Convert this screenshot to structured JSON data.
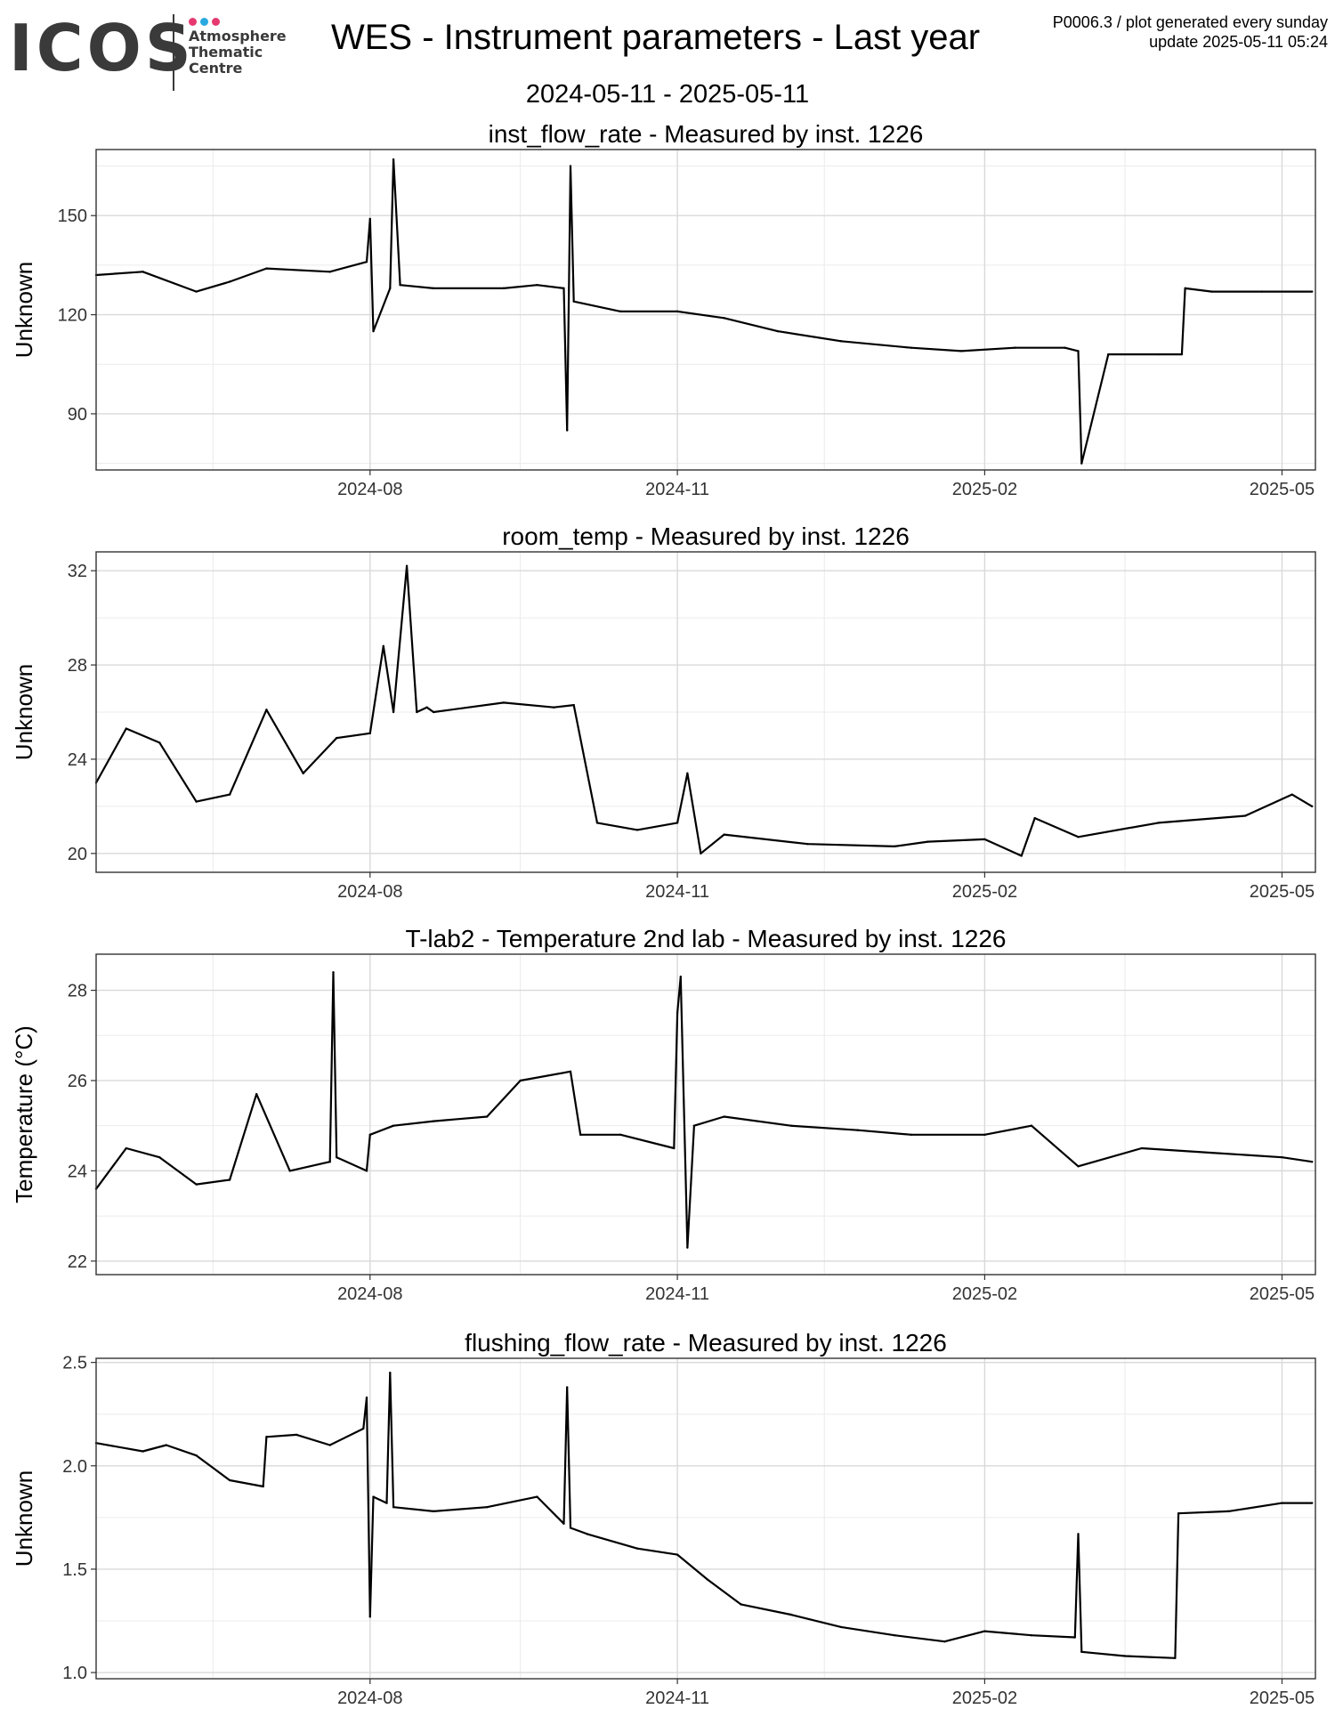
{
  "header": {
    "logo_text": "ICOS",
    "logo_sub": [
      "Atmosphere",
      "Thematic",
      "Centre"
    ],
    "logo_dot_colors": [
      "#e6396f",
      "#2aa8e0",
      "#e6396f"
    ],
    "title": "WES - Instrument parameters - Last year",
    "date_range": "2024-05-11 - 2025-05-11",
    "meta_line1": "P0006.3 / plot generated every sunday",
    "meta_line2": "update  2025-05-11 05:24"
  },
  "chart_data": [
    {
      "type": "line",
      "title": "inst_flow_rate - Measured by inst. 1226",
      "ylabel": "Unknown",
      "xlim": [
        "2024-05-11",
        "2025-05-11"
      ],
      "ylim": [
        73,
        170
      ],
      "yticks": [
        90,
        120,
        150
      ],
      "xticks": [
        {
          "date": "2024-08-01",
          "label": "2024-08"
        },
        {
          "date": "2024-11-01",
          "label": "2024-11"
        },
        {
          "date": "2025-02-01",
          "label": "2025-02"
        },
        {
          "date": "2025-05-01",
          "label": "2025-05"
        }
      ],
      "grid": true,
      "series": [
        {
          "x": [
            "2024-05-11",
            "2024-05-25",
            "2024-06-10",
            "2024-06-20",
            "2024-07-01",
            "2024-07-20",
            "2024-07-31",
            "2024-08-01",
            "2024-08-02",
            "2024-08-07",
            "2024-08-08",
            "2024-08-10",
            "2024-08-20",
            "2024-09-10",
            "2024-09-20",
            "2024-09-28",
            "2024-09-29",
            "2024-09-30",
            "2024-10-01",
            "2024-10-15",
            "2024-11-01",
            "2024-11-15",
            "2024-12-01",
            "2024-12-20",
            "2025-01-10",
            "2025-01-25",
            "2025-02-10",
            "2025-02-25",
            "2025-03-01",
            "2025-03-02",
            "2025-03-10",
            "2025-03-25",
            "2025-04-01",
            "2025-04-02",
            "2025-04-10",
            "2025-04-25",
            "2025-05-10"
          ],
          "y": [
            132,
            133,
            127,
            130,
            134,
            133,
            136,
            149,
            115,
            128,
            167,
            129,
            128,
            128,
            129,
            128,
            85,
            165,
            124,
            121,
            121,
            119,
            115,
            112,
            110,
            109,
            110,
            110,
            109,
            75,
            108,
            108,
            108,
            128,
            127,
            127,
            127
          ]
        }
      ]
    },
    {
      "type": "line",
      "title": "room_temp - Measured by inst. 1226",
      "ylabel": "Unknown",
      "xlim": [
        "2024-05-11",
        "2025-05-11"
      ],
      "ylim": [
        19.2,
        32.8
      ],
      "yticks": [
        20,
        24,
        28,
        32
      ],
      "xticks": [
        {
          "date": "2024-08-01",
          "label": "2024-08"
        },
        {
          "date": "2024-11-01",
          "label": "2024-11"
        },
        {
          "date": "2025-02-01",
          "label": "2025-02"
        },
        {
          "date": "2025-05-01",
          "label": "2025-05"
        }
      ],
      "grid": true,
      "series": [
        {
          "x": [
            "2024-05-11",
            "2024-05-20",
            "2024-05-30",
            "2024-06-10",
            "2024-06-20",
            "2024-07-01",
            "2024-07-12",
            "2024-07-22",
            "2024-08-01",
            "2024-08-05",
            "2024-08-08",
            "2024-08-12",
            "2024-08-15",
            "2024-08-18",
            "2024-08-20",
            "2024-09-10",
            "2024-09-25",
            "2024-10-01",
            "2024-10-08",
            "2024-10-20",
            "2024-11-01",
            "2024-11-04",
            "2024-11-08",
            "2024-11-15",
            "2024-12-10",
            "2025-01-05",
            "2025-01-15",
            "2025-02-01",
            "2025-02-12",
            "2025-02-16",
            "2025-03-01",
            "2025-03-25",
            "2025-04-20",
            "2025-05-04",
            "2025-05-10"
          ],
          "y": [
            23.0,
            25.3,
            24.7,
            22.2,
            22.5,
            26.1,
            23.4,
            24.9,
            25.1,
            28.8,
            26.0,
            32.2,
            26.0,
            26.2,
            26.0,
            26.4,
            26.2,
            26.3,
            21.3,
            21.0,
            21.3,
            23.4,
            20.0,
            20.8,
            20.4,
            20.3,
            20.5,
            20.6,
            19.9,
            21.5,
            20.7,
            21.3,
            21.6,
            22.5,
            22.0
          ]
        }
      ]
    },
    {
      "type": "line",
      "title": "T-lab2 - Temperature 2nd lab - Measured by inst. 1226",
      "ylabel": "Temperature (°C)",
      "xlim": [
        "2024-05-11",
        "2025-05-11"
      ],
      "ylim": [
        21.7,
        28.8
      ],
      "yticks": [
        22,
        24,
        26,
        28
      ],
      "xticks": [
        {
          "date": "2024-08-01",
          "label": "2024-08"
        },
        {
          "date": "2024-11-01",
          "label": "2024-11"
        },
        {
          "date": "2025-02-01",
          "label": "2025-02"
        },
        {
          "date": "2025-05-01",
          "label": "2025-05"
        }
      ],
      "grid": true,
      "series": [
        {
          "x": [
            "2024-05-11",
            "2024-05-20",
            "2024-05-30",
            "2024-06-10",
            "2024-06-20",
            "2024-06-28",
            "2024-07-08",
            "2024-07-20",
            "2024-07-21",
            "2024-07-22",
            "2024-07-31",
            "2024-08-01",
            "2024-08-08",
            "2024-08-20",
            "2024-09-05",
            "2024-09-15",
            "2024-09-30",
            "2024-10-03",
            "2024-10-15",
            "2024-10-31",
            "2024-11-01",
            "2024-11-02",
            "2024-11-04",
            "2024-11-06",
            "2024-11-15",
            "2024-12-05",
            "2024-12-25",
            "2025-01-10",
            "2025-02-01",
            "2025-02-15",
            "2025-03-01",
            "2025-03-20",
            "2025-04-10",
            "2025-05-01",
            "2025-05-10"
          ],
          "y": [
            23.6,
            24.5,
            24.3,
            23.7,
            23.8,
            25.7,
            24.0,
            24.2,
            28.4,
            24.3,
            24.0,
            24.8,
            25.0,
            25.1,
            25.2,
            26.0,
            26.2,
            24.8,
            24.8,
            24.5,
            27.5,
            28.3,
            22.3,
            25.0,
            25.2,
            25.0,
            24.9,
            24.8,
            24.8,
            25.0,
            24.1,
            24.5,
            24.4,
            24.3,
            24.2
          ]
        }
      ]
    },
    {
      "type": "line",
      "title": "flushing_flow_rate - Measured by inst. 1226",
      "ylabel": "Unknown",
      "xlim": [
        "2024-05-11",
        "2025-05-11"
      ],
      "ylim": [
        0.97,
        2.52
      ],
      "yticks": [
        1.0,
        1.5,
        2.0,
        2.5
      ],
      "ytick_labels": [
        "1.0",
        "1.5",
        "2.0",
        "2.5"
      ],
      "xticks": [
        {
          "date": "2024-08-01",
          "label": "2024-08"
        },
        {
          "date": "2024-11-01",
          "label": "2024-11"
        },
        {
          "date": "2025-02-01",
          "label": "2025-02"
        },
        {
          "date": "2025-05-01",
          "label": "2025-05"
        }
      ],
      "grid": true,
      "series": [
        {
          "x": [
            "2024-05-11",
            "2024-05-25",
            "2024-06-01",
            "2024-06-10",
            "2024-06-20",
            "2024-06-30",
            "2024-07-01",
            "2024-07-10",
            "2024-07-20",
            "2024-07-30",
            "2024-07-31",
            "2024-08-01",
            "2024-08-02",
            "2024-08-06",
            "2024-08-07",
            "2024-08-08",
            "2024-08-20",
            "2024-09-05",
            "2024-09-20",
            "2024-09-28",
            "2024-09-29",
            "2024-09-30",
            "2024-10-05",
            "2024-10-20",
            "2024-11-01",
            "2024-11-10",
            "2024-11-20",
            "2024-12-05",
            "2024-12-20",
            "2025-01-05",
            "2025-01-20",
            "2025-02-01",
            "2025-02-15",
            "2025-02-28",
            "2025-03-01",
            "2025-03-02",
            "2025-03-15",
            "2025-03-30",
            "2025-03-31",
            "2025-04-15",
            "2025-05-01",
            "2025-05-10"
          ],
          "y": [
            2.11,
            2.07,
            2.1,
            2.05,
            1.93,
            1.9,
            2.14,
            2.15,
            2.1,
            2.18,
            2.33,
            1.27,
            1.85,
            1.82,
            2.45,
            1.8,
            1.78,
            1.8,
            1.85,
            1.72,
            2.38,
            1.7,
            1.67,
            1.6,
            1.57,
            1.45,
            1.33,
            1.28,
            1.22,
            1.18,
            1.15,
            1.2,
            1.18,
            1.17,
            1.67,
            1.1,
            1.08,
            1.07,
            1.77,
            1.78,
            1.82,
            1.82
          ]
        }
      ]
    }
  ]
}
